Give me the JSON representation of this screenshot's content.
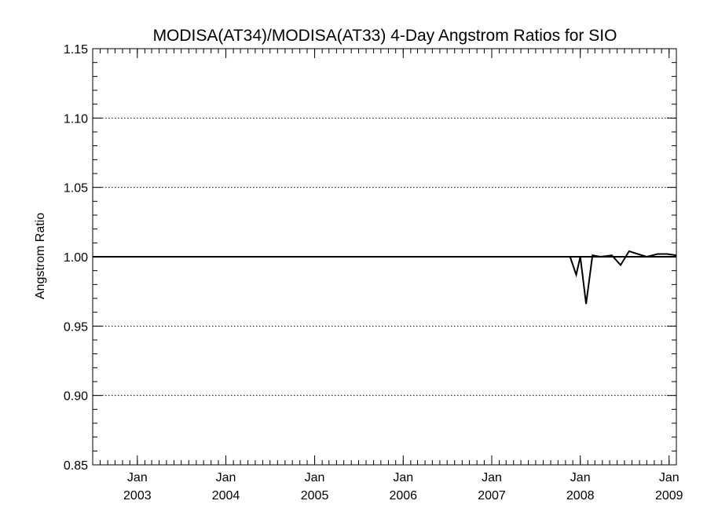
{
  "chart_data": {
    "type": "line",
    "title": "MODISA(AT34)/MODISA(AT33) 4-Day Angstrom Ratios for SIO",
    "xlabel": "",
    "ylabel": "Angstrom Ratio",
    "ylim": [
      0.85,
      1.15
    ],
    "xlim": [
      "2002-07-01",
      "2009-01-31"
    ],
    "grid": "dotted horizontal",
    "legend": "none",
    "y_ticks": [
      "0.85",
      "0.90",
      "0.95",
      "1.00",
      "1.05",
      "1.10",
      "1.15"
    ],
    "x_ticks": [
      {
        "date": "2003-01-01",
        "month": "Jan",
        "year": "2003"
      },
      {
        "date": "2004-01-01",
        "month": "Jan",
        "year": "2004"
      },
      {
        "date": "2005-01-01",
        "month": "Jan",
        "year": "2005"
      },
      {
        "date": "2006-01-01",
        "month": "Jan",
        "year": "2006"
      },
      {
        "date": "2007-01-01",
        "month": "Jan",
        "year": "2007"
      },
      {
        "date": "2008-01-01",
        "month": "Jan",
        "year": "2008"
      },
      {
        "date": "2009-01-01",
        "month": "Jan",
        "year": "2009"
      }
    ],
    "reference_line": 1.0,
    "series": [
      {
        "color": "#000000",
        "points": [
          [
            "2007-11-20",
            1.0
          ],
          [
            "2007-12-15",
            0.987
          ],
          [
            "2008-01-01",
            1.0
          ],
          [
            "2008-01-25",
            0.966
          ],
          [
            "2008-02-20",
            1.001
          ],
          [
            "2008-03-25",
            1.0
          ],
          [
            "2008-05-10",
            1.001
          ],
          [
            "2008-06-15",
            0.994
          ],
          [
            "2008-07-20",
            1.004
          ],
          [
            "2008-08-25",
            1.002
          ],
          [
            "2008-10-01",
            1.0
          ],
          [
            "2008-11-15",
            1.002
          ],
          [
            "2008-12-25",
            1.002
          ],
          [
            "2009-01-31",
            1.001
          ]
        ]
      }
    ]
  }
}
